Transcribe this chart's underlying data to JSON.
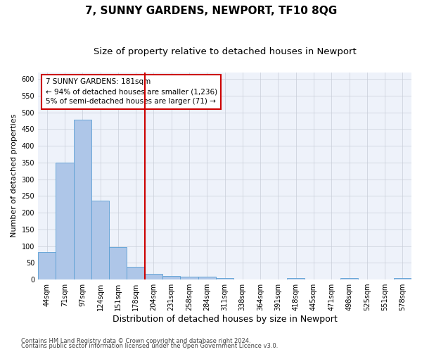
{
  "title1": "7, SUNNY GARDENS, NEWPORT, TF10 8QG",
  "title2": "Size of property relative to detached houses in Newport",
  "xlabel": "Distribution of detached houses by size in Newport",
  "ylabel": "Number of detached properties",
  "categories": [
    "44sqm",
    "71sqm",
    "97sqm",
    "124sqm",
    "151sqm",
    "178sqm",
    "204sqm",
    "231sqm",
    "258sqm",
    "284sqm",
    "311sqm",
    "338sqm",
    "364sqm",
    "391sqm",
    "418sqm",
    "445sqm",
    "471sqm",
    "498sqm",
    "525sqm",
    "551sqm",
    "578sqm"
  ],
  "values": [
    83,
    349,
    478,
    235,
    96,
    38,
    17,
    10,
    9,
    8,
    5,
    0,
    0,
    0,
    5,
    0,
    0,
    5,
    0,
    0,
    5
  ],
  "bar_color": "#aec6e8",
  "bar_edge_color": "#5a9fd4",
  "vline_x": 5.5,
  "vline_color": "#cc0000",
  "annotation_line1": "7 SUNNY GARDENS: 181sqm",
  "annotation_line2": "← 94% of detached houses are smaller (1,236)",
  "annotation_line3": "5% of semi-detached houses are larger (71) →",
  "annotation_box_color": "#ffffff",
  "annotation_box_edge": "#cc0000",
  "ylim": [
    0,
    620
  ],
  "yticks": [
    0,
    50,
    100,
    150,
    200,
    250,
    300,
    350,
    400,
    450,
    500,
    550,
    600
  ],
  "footer1": "Contains HM Land Registry data © Crown copyright and database right 2024.",
  "footer2": "Contains public sector information licensed under the Open Government Licence v3.0.",
  "bg_color": "#eef2fa",
  "title1_fontsize": 11,
  "title2_fontsize": 9.5,
  "xlabel_fontsize": 9,
  "ylabel_fontsize": 8,
  "tick_fontsize": 7,
  "annotation_fontsize": 7.5,
  "footer_fontsize": 6
}
